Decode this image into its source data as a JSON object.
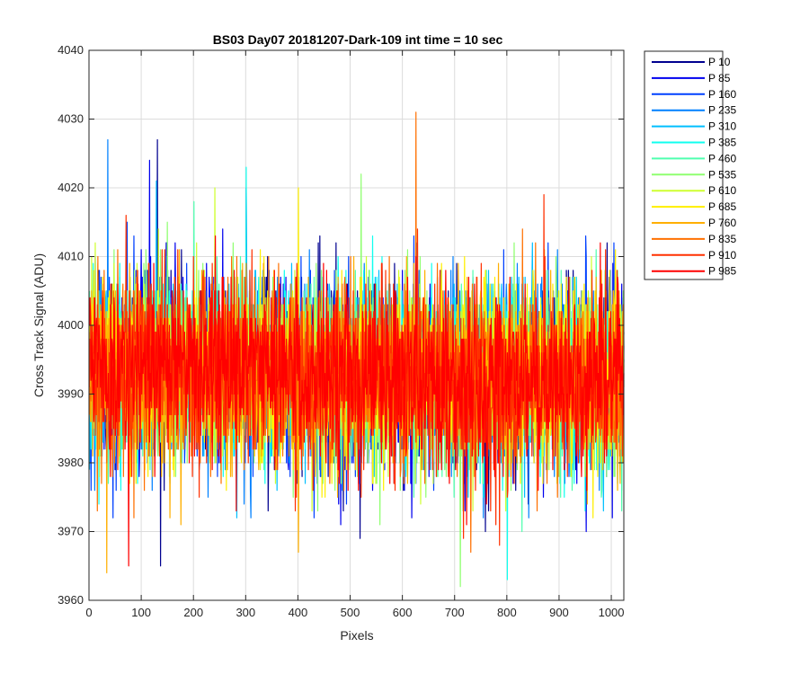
{
  "chart_data": {
    "type": "line",
    "title": "BS03 Day07 20181207-Dark-109 int time = 10 sec",
    "xlabel": "Pixels",
    "ylabel": "Cross Track Signal (ADU)",
    "xlim": [
      0,
      1024
    ],
    "ylim": [
      3960,
      4040
    ],
    "xticks": [
      0,
      100,
      200,
      300,
      400,
      500,
      600,
      700,
      800,
      900,
      1000
    ],
    "yticks": [
      3960,
      3970,
      3980,
      3990,
      4000,
      4010,
      4020,
      4030,
      4040
    ],
    "grid": true,
    "legend_position": "outside-top-right",
    "n_points_per_series": 1024,
    "noise_summary": {
      "mean_approx": 3994,
      "typical_low": 3975,
      "typical_high": 4013
    },
    "series": [
      {
        "name": "P 10",
        "color": "#00008F",
        "extremes": [
          [
            130,
            4027
          ],
          [
            136,
            3965
          ]
        ]
      },
      {
        "name": "P 85",
        "color": "#0000EE",
        "extremes": [
          [
            115,
            4024
          ],
          [
            300,
            4020
          ]
        ]
      },
      {
        "name": "P 160",
        "color": "#0040FF",
        "extremes": [
          [
            950,
            4013
          ]
        ]
      },
      {
        "name": "P 235",
        "color": "#0080FF",
        "extremes": [
          [
            35,
            4027
          ]
        ]
      },
      {
        "name": "P 310",
        "color": "#00BFFF",
        "extremes": [
          [
            128,
            4021
          ]
        ]
      },
      {
        "name": "P 385",
        "color": "#10FFEF",
        "extremes": [
          [
            300,
            4023
          ],
          [
            800,
            3963
          ]
        ]
      },
      {
        "name": "P 460",
        "color": "#50FFAF",
        "extremes": [
          [
            200,
            4018
          ]
        ]
      },
      {
        "name": "P 535",
        "color": "#8FFF70",
        "extremes": [
          [
            710,
            3962
          ],
          [
            520,
            4022
          ]
        ]
      },
      {
        "name": "P 610",
        "color": "#CFFF30",
        "extremes": [
          [
            240,
            4020
          ]
        ]
      },
      {
        "name": "P 685",
        "color": "#FFEF00",
        "extremes": [
          [
            400,
            4020
          ]
        ]
      },
      {
        "name": "P 760",
        "color": "#FFAF00",
        "extremes": [
          [
            33,
            3964
          ],
          [
            400,
            3967
          ]
        ]
      },
      {
        "name": "P 835",
        "color": "#FF7000",
        "extremes": [
          [
            625,
            4031
          ],
          [
            730,
            4023
          ],
          [
            730,
            3967
          ]
        ]
      },
      {
        "name": "P 910",
        "color": "#FF3000",
        "extremes": [
          [
            870,
            4019
          ],
          [
            785,
            3968
          ]
        ]
      },
      {
        "name": "P 985",
        "color": "#FF0000",
        "extremes": [
          [
            75,
            3965
          ]
        ]
      }
    ]
  }
}
